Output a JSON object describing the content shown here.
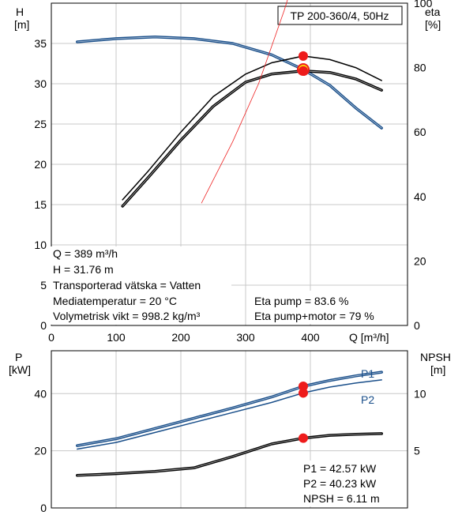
{
  "title_box": "TP 200-360/4, 50Hz",
  "chart_data": [
    {
      "type": "line",
      "name": "head-efficiency",
      "xlabel": "Q [m³/h]",
      "ylabel_left": [
        "H",
        "[m]"
      ],
      "ylabel_right": [
        "eta",
        "[%]"
      ],
      "xlim": [
        0,
        550
      ],
      "ylim_left": [
        0,
        40
      ],
      "ylim_right": [
        0,
        100
      ],
      "x_ticks": [
        0,
        100,
        200,
        300,
        400
      ],
      "y_ticks_left": [
        0,
        5,
        10,
        15,
        20,
        25,
        30,
        35
      ],
      "y_ticks_right": [
        0,
        20,
        40,
        60,
        80,
        100
      ],
      "grid": true,
      "series": [
        {
          "axis": "left",
          "color": "#1a4f8a",
          "width": 3.5,
          "points": [
            [
              40,
              35.2
            ],
            [
              100,
              35.6
            ],
            [
              160,
              35.8
            ],
            [
              220,
              35.6
            ],
            [
              280,
              35.0
            ],
            [
              340,
              33.6
            ],
            [
              389,
              31.76
            ],
            [
              430,
              29.8
            ],
            [
              470,
              27.0
            ],
            [
              510,
              24.5
            ]
          ]
        },
        {
          "axis": "right",
          "color": "#000000",
          "width": 1.5,
          "points": [
            [
              110,
              39
            ],
            [
              150,
              48
            ],
            [
              200,
              60
            ],
            [
              250,
              71
            ],
            [
              300,
              78
            ],
            [
              340,
              81.5
            ],
            [
              389,
              83.6
            ],
            [
              430,
              82.5
            ],
            [
              470,
              80
            ],
            [
              510,
              76
            ]
          ]
        },
        {
          "axis": "right",
          "color": "#000000",
          "width": 3.5,
          "points": [
            [
              110,
              37
            ],
            [
              150,
              46
            ],
            [
              200,
              57.5
            ],
            [
              250,
              68
            ],
            [
              300,
              75.5
            ],
            [
              340,
              78
            ],
            [
              389,
              79
            ],
            [
              430,
              78.5
            ],
            [
              470,
              76.5
            ],
            [
              510,
              73
            ]
          ]
        },
        {
          "axis": "right",
          "color": "#ee2222",
          "width": 0.8,
          "points": [
            [
              232,
              38
            ],
            [
              280,
              57
            ],
            [
              320,
              75
            ],
            [
              360,
              98
            ],
            [
              389,
              117
            ]
          ]
        }
      ],
      "duty_points": [
        {
          "axis": "left",
          "x": 389,
          "y": 31.76,
          "style": "yellow"
        },
        {
          "axis": "right",
          "x": 389,
          "y": 83.6,
          "style": "red"
        },
        {
          "axis": "right",
          "x": 389,
          "y": 79,
          "style": "red"
        }
      ],
      "info_lines": [
        "Q = 389 m³/h",
        "H = 31.76 m",
        "Transporterad vätska = Vatten",
        "Mediatemperatur = 20 °C",
        "Volymetrisk vikt = 998.2 kg/m³"
      ],
      "eta_lines": [
        "Eta pump = 83.6 %",
        "Eta pump+motor = 79 %"
      ]
    },
    {
      "type": "line",
      "name": "power-npsh",
      "ylabel_left": [
        "P",
        "[kW]"
      ],
      "ylabel_right": [
        "NPSH",
        "[m]"
      ],
      "xlim": [
        0,
        550
      ],
      "ylim_left": [
        0,
        55
      ],
      "ylim_right": [
        0,
        13.75
      ],
      "y_ticks_left": [
        0,
        20,
        40
      ],
      "y_ticks_right": [
        5,
        10
      ],
      "grid": true,
      "series": [
        {
          "axis": "left",
          "label": "P1",
          "color": "#1a4f8a",
          "width": 3.5,
          "points": [
            [
              40,
              21.8
            ],
            [
              100,
              24.2
            ],
            [
              160,
              27.8
            ],
            [
              220,
              31.4
            ],
            [
              280,
              35.0
            ],
            [
              340,
              38.8
            ],
            [
              389,
              42.57
            ],
            [
              430,
              44.6
            ],
            [
              470,
              46.2
            ],
            [
              510,
              47.5
            ]
          ]
        },
        {
          "axis": "left",
          "label": "P2",
          "color": "#1a4f8a",
          "width": 1.5,
          "points": [
            [
              40,
              20.6
            ],
            [
              100,
              22.9
            ],
            [
              160,
              26.4
            ],
            [
              220,
              29.9
            ],
            [
              280,
              33.4
            ],
            [
              340,
              36.9
            ],
            [
              389,
              40.23
            ],
            [
              430,
              42.3
            ],
            [
              470,
              43.7
            ],
            [
              510,
              44.8
            ]
          ]
        },
        {
          "axis": "right",
          "color": "#000000",
          "width": 3.5,
          "points": [
            [
              40,
              2.85
            ],
            [
              100,
              3.0
            ],
            [
              160,
              3.2
            ],
            [
              220,
              3.5
            ],
            [
              280,
              4.5
            ],
            [
              340,
              5.6
            ],
            [
              389,
              6.11
            ],
            [
              430,
              6.35
            ],
            [
              470,
              6.45
            ],
            [
              510,
              6.5
            ]
          ]
        }
      ],
      "duty_points": [
        {
          "axis": "left",
          "x": 389,
          "y": 42.57,
          "style": "red"
        },
        {
          "axis": "left",
          "x": 389,
          "y": 40.23,
          "style": "red"
        },
        {
          "axis": "right",
          "x": 389,
          "y": 6.11,
          "style": "red"
        }
      ],
      "info_lines": [
        "P1 = 42.57 kW",
        "P2 = 40.23 kW",
        "NPSH = 6.11 m"
      ]
    }
  ]
}
